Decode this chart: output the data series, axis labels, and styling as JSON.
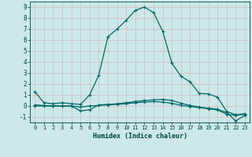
{
  "xlabel": "Humidex (Indice chaleur)",
  "background_color": "#cce8e8",
  "grid_color": "#b8d8d8",
  "line_color": "#006868",
  "xlim": [
    -0.5,
    23.5
  ],
  "ylim": [
    -1.5,
    9.5
  ],
  "xticks": [
    0,
    1,
    2,
    3,
    4,
    5,
    6,
    7,
    8,
    9,
    10,
    11,
    12,
    13,
    14,
    15,
    16,
    17,
    18,
    19,
    20,
    21,
    22,
    23
  ],
  "yticks": [
    -1,
    0,
    1,
    2,
    3,
    4,
    5,
    6,
    7,
    8,
    9
  ],
  "series1_x": [
    0,
    1,
    2,
    3,
    4,
    5,
    6,
    7,
    8,
    9,
    10,
    11,
    12,
    13,
    14,
    15,
    16,
    17,
    18,
    19,
    20,
    21,
    22,
    23
  ],
  "series1_y": [
    1.3,
    0.3,
    0.2,
    0.3,
    0.2,
    0.15,
    1.0,
    2.8,
    6.3,
    7.0,
    7.8,
    8.7,
    9.0,
    8.5,
    6.8,
    3.9,
    2.7,
    2.2,
    1.15,
    1.1,
    0.8,
    -0.5,
    -0.8,
    -0.7
  ],
  "series2_x": [
    0,
    1,
    2,
    3,
    4,
    5,
    6,
    7,
    8,
    9,
    10,
    11,
    12,
    13,
    14,
    15,
    16,
    17,
    18,
    19,
    20,
    21,
    22,
    23
  ],
  "series2_y": [
    0.1,
    0.05,
    0.0,
    0.0,
    0.0,
    -0.45,
    -0.35,
    0.1,
    0.15,
    0.2,
    0.3,
    0.4,
    0.5,
    0.55,
    0.6,
    0.5,
    0.25,
    0.05,
    -0.1,
    -0.2,
    -0.3,
    -0.6,
    -1.35,
    -0.85
  ],
  "series3_x": [
    0,
    1,
    2,
    3,
    4,
    5,
    6,
    7,
    8,
    9,
    10,
    11,
    12,
    13,
    14,
    15,
    16,
    17,
    18,
    19,
    20,
    21,
    22,
    23
  ],
  "series3_y": [
    0.0,
    0.0,
    0.0,
    0.0,
    0.0,
    -0.1,
    0.0,
    0.05,
    0.1,
    0.15,
    0.2,
    0.3,
    0.35,
    0.4,
    0.35,
    0.25,
    0.05,
    -0.05,
    -0.15,
    -0.25,
    -0.35,
    -0.75,
    -0.85,
    -0.75
  ]
}
